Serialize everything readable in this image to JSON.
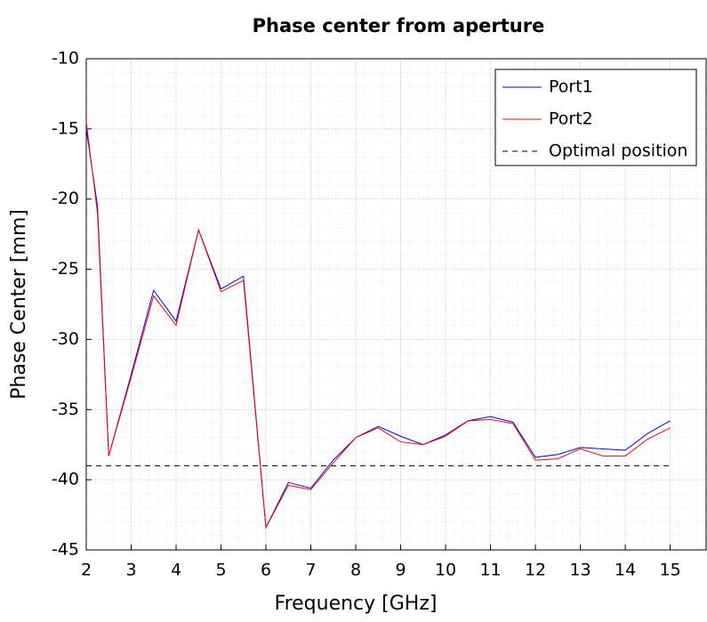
{
  "chart_data": {
    "type": "line",
    "title": "Phase center from aperture",
    "x_label": "Frequency [GHz]",
    "y_label": "Phase Center [mm]",
    "x": [
      2,
      2.25,
      2.5,
      3,
      3.5,
      4,
      4.5,
      5,
      5.5,
      6,
      6.5,
      7,
      7.5,
      8,
      8.5,
      9,
      9.5,
      10,
      10.5,
      11,
      11.5,
      12,
      12.5,
      13,
      13.5,
      14,
      14.5,
      15
    ],
    "series": [
      {
        "name": "Port1",
        "color": "#0000ff",
        "dash": false,
        "values": [
          -15.0,
          -20.5,
          -38.3,
          -32.5,
          -26.5,
          -28.7,
          -22.2,
          -26.4,
          -25.5,
          -43.4,
          -40.2,
          -40.6,
          -38.6,
          -37.0,
          -36.2,
          -36.9,
          -37.5,
          -36.8,
          -35.8,
          -35.5,
          -35.9,
          -38.4,
          -38.2,
          -37.7,
          -37.8,
          -37.9,
          -36.7,
          -35.8
        ]
      },
      {
        "name": "Port2",
        "color": "#ff0000",
        "dash": false,
        "values": [
          -14.5,
          -21.0,
          -38.3,
          -32.7,
          -26.9,
          -29.0,
          -22.2,
          -26.6,
          -25.8,
          -43.4,
          -40.4,
          -40.7,
          -38.8,
          -37.0,
          -36.3,
          -37.3,
          -37.5,
          -36.9,
          -35.8,
          -35.7,
          -36.0,
          -38.6,
          -38.5,
          -37.8,
          -38.3,
          -38.3,
          -37.1,
          -36.3
        ]
      },
      {
        "name": "Optimal position",
        "color": "#000000",
        "dash": true,
        "values": [
          -39,
          -39,
          -39,
          -39,
          -39,
          -39,
          -39,
          -39,
          -39,
          -39,
          -39,
          -39,
          -39,
          -39,
          -39,
          -39,
          -39,
          -39,
          -39,
          -39,
          -39,
          -39,
          -39,
          -39,
          -39,
          -39,
          -39,
          -39
        ]
      }
    ],
    "xlim": [
      2,
      15.8
    ],
    "ylim": [
      -45,
      -10
    ],
    "xticks": [
      2,
      3,
      4,
      5,
      6,
      7,
      8,
      9,
      10,
      11,
      12,
      13,
      14,
      15
    ],
    "yticks": [
      -45,
      -40,
      -35,
      -30,
      -25,
      -20,
      -15,
      -10
    ],
    "grid": true,
    "minor_grid": true,
    "legend": "upper right"
  }
}
